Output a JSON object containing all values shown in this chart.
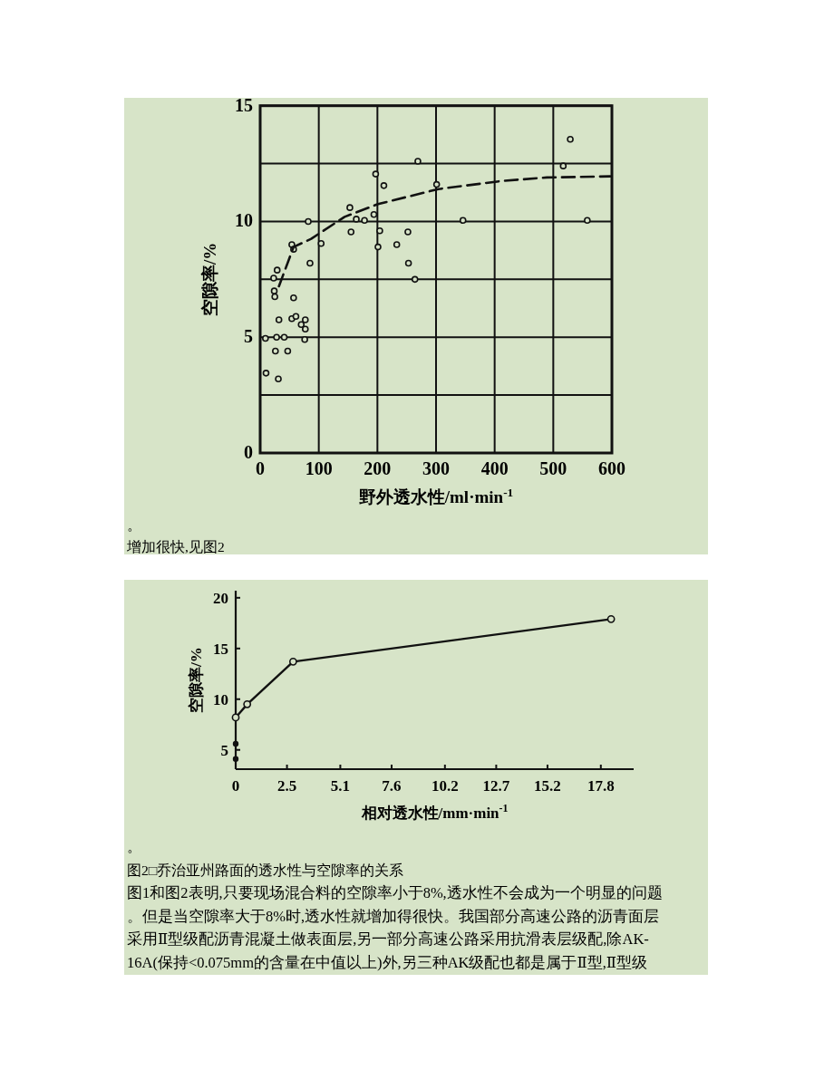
{
  "chart_data": [
    {
      "type": "scatter",
      "xlabel": "野外透水性/ml·min$^{-1}$",
      "ylabel": "空隙率/%",
      "xlim": [
        0,
        600
      ],
      "ylim": [
        0,
        15
      ],
      "xticks": [
        0,
        100,
        200,
        300,
        400,
        500,
        600
      ],
      "yticks": [
        0,
        {
          "value": 2.5,
          "label": null
        },
        5,
        {
          "value": 7.5,
          "label": null
        },
        10,
        {
          "value": 12.5,
          "label": null
        },
        15
      ],
      "grid": true,
      "marker": "circle",
      "series": [
        {
          "color": "#111111",
          "x": [
            10,
            31,
            26,
            47,
            9,
            28,
            41,
            76,
            32,
            54,
            61,
            70,
            77,
            77,
            57,
            25,
            24,
            23,
            29,
            54,
            57,
            85,
            82,
            104,
            153,
            155,
            164,
            178,
            194,
            197,
            211,
            204,
            201,
            233,
            252,
            253,
            264,
            269,
            301,
            346,
            517,
            529,
            558
          ],
          "values": [
            3.45,
            3.2,
            4.4,
            4.4,
            4.95,
            5.0,
            5.0,
            4.9,
            5.75,
            5.8,
            5.9,
            5.55,
            5.35,
            5.75,
            6.7,
            6.75,
            7.0,
            7.55,
            7.9,
            9.0,
            8.8,
            8.2,
            10.0,
            9.05,
            10.6,
            9.55,
            10.1,
            10.05,
            10.3,
            12.05,
            11.55,
            9.6,
            8.9,
            9.0,
            9.55,
            8.2,
            7.5,
            12.6,
            11.6,
            10.05,
            12.4,
            13.55,
            10.05
          ]
        },
        {
          "type": "line",
          "color": "#111111",
          "marker": "none",
          "line_style": "dashed",
          "x": [
            32,
            57,
            87,
            144,
            201,
            304,
            412,
            489,
            597
          ],
          "values": [
            7.2,
            8.9,
            9.25,
            10.2,
            10.75,
            11.4,
            11.75,
            11.9,
            11.95
          ]
        }
      ],
      "annotations": [
        "。",
        "增加很快,见图2"
      ]
    },
    {
      "type": "line",
      "xlabel": "相对透水性/mm·min$^{-1}$",
      "ylabel": "空隙率/%",
      "xlim": [
        0,
        19.4
      ],
      "ylim": [
        3.1,
        20.7
      ],
      "xticks": [
        0,
        2.5,
        5.1,
        7.6,
        10.2,
        12.7,
        15.2,
        17.8
      ],
      "yticks": [
        5,
        10,
        15,
        20
      ],
      "grid": false,
      "marker": "circle",
      "line_style": "solid",
      "series": [
        {
          "color": "#111111",
          "x": [
            0,
            0.56,
            2.8,
            18.3
          ],
          "values": [
            8.2,
            9.5,
            13.7,
            17.9
          ]
        },
        {
          "type": "scatter",
          "color": "#111111",
          "marker": "circle",
          "x": [
            0,
            0
          ],
          "values": [
            5.6,
            4.1
          ]
        }
      ],
      "annotations": [
        "。",
        "图2□乔治亚州路面的透水性与空隙率的关系",
        "图1和图2表明,只要现场混合料的空隙率小于8%,透水性不会成为一个明显的问题",
        "。但是当空隙率大于8%时,透水性就增加得很快。我国部分高速公路的沥青面层",
        "采用Ⅱ型级配沥青混凝土做表面层,另一部分高速公路采用抗滑表层级配,除AK-",
        "16A(保持<0.075mm的含量在中值以上)外,另三种AK级配也都是属于Ⅱ型,Ⅱ型级"
      ]
    }
  ]
}
